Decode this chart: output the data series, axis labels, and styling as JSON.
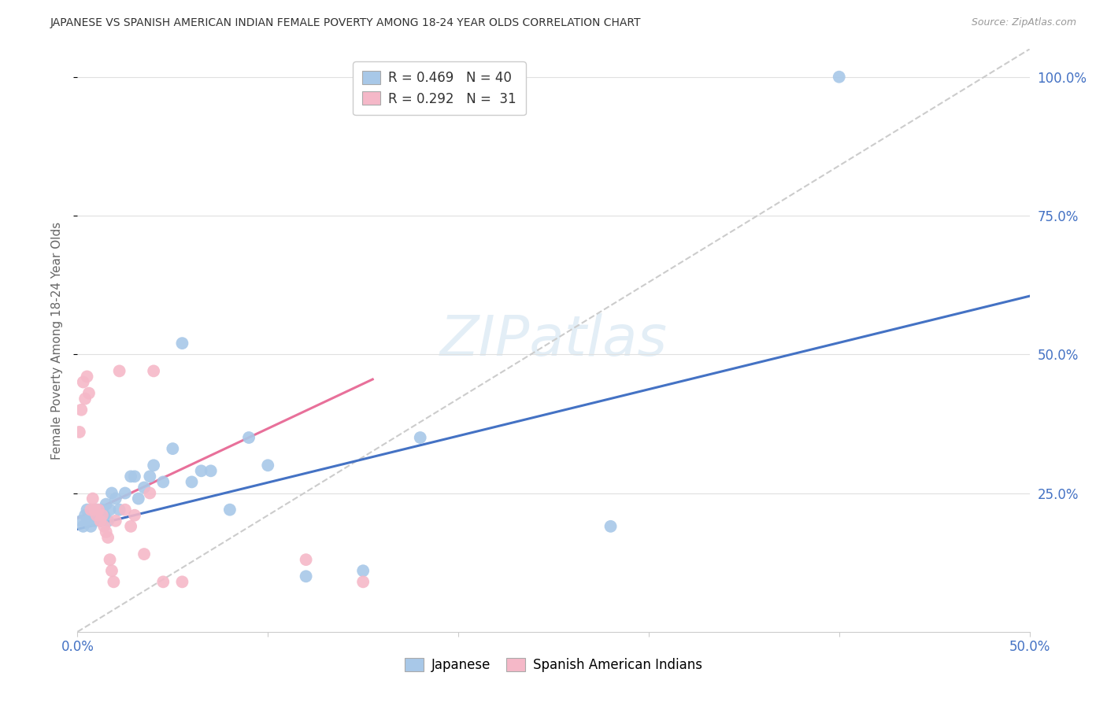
{
  "title": "JAPANESE VS SPANISH AMERICAN INDIAN FEMALE POVERTY AMONG 18-24 YEAR OLDS CORRELATION CHART",
  "source": "Source: ZipAtlas.com",
  "ylabel": "Female Poverty Among 18-24 Year Olds",
  "xlim": [
    0.0,
    0.5
  ],
  "ylim": [
    0.0,
    1.05
  ],
  "xticks": [
    0.0,
    0.1,
    0.2,
    0.3,
    0.4,
    0.5
  ],
  "xtick_labels": [
    "0.0%",
    "",
    "",
    "",
    "",
    "50.0%"
  ],
  "yticks": [
    0.25,
    0.5,
    0.75,
    1.0
  ],
  "ytick_labels": [
    "25.0%",
    "50.0%",
    "75.0%",
    "100.0%"
  ],
  "japanese_R": 0.469,
  "japanese_N": 40,
  "spanish_R": 0.292,
  "spanish_N": 31,
  "japanese_color": "#a8c8e8",
  "spanish_color": "#f5b8c8",
  "japanese_line_color": "#4472c4",
  "spanish_line_color": "#e8709a",
  "diagonal_color": "#cccccc",
  "background_color": "#ffffff",
  "grid_color": "#e0e0e0",
  "japanese_x": [
    0.002,
    0.003,
    0.004,
    0.005,
    0.006,
    0.007,
    0.008,
    0.009,
    0.01,
    0.011,
    0.012,
    0.013,
    0.014,
    0.015,
    0.016,
    0.017,
    0.018,
    0.02,
    0.022,
    0.025,
    0.028,
    0.03,
    0.032,
    0.035,
    0.038,
    0.04,
    0.045,
    0.05,
    0.055,
    0.06,
    0.065,
    0.07,
    0.08,
    0.09,
    0.1,
    0.12,
    0.15,
    0.18,
    0.28,
    0.4
  ],
  "japanese_y": [
    0.2,
    0.19,
    0.21,
    0.22,
    0.2,
    0.19,
    0.21,
    0.2,
    0.22,
    0.21,
    0.2,
    0.22,
    0.21,
    0.23,
    0.2,
    0.22,
    0.25,
    0.24,
    0.22,
    0.25,
    0.28,
    0.28,
    0.24,
    0.26,
    0.28,
    0.3,
    0.27,
    0.33,
    0.52,
    0.27,
    0.29,
    0.29,
    0.22,
    0.35,
    0.3,
    0.1,
    0.11,
    0.35,
    0.19,
    1.0
  ],
  "spanish_x": [
    0.001,
    0.002,
    0.003,
    0.004,
    0.005,
    0.006,
    0.007,
    0.008,
    0.009,
    0.01,
    0.011,
    0.012,
    0.013,
    0.014,
    0.015,
    0.016,
    0.017,
    0.018,
    0.019,
    0.02,
    0.022,
    0.025,
    0.028,
    0.03,
    0.035,
    0.038,
    0.04,
    0.045,
    0.055,
    0.12,
    0.15
  ],
  "spanish_y": [
    0.36,
    0.4,
    0.45,
    0.42,
    0.46,
    0.43,
    0.22,
    0.24,
    0.22,
    0.21,
    0.22,
    0.2,
    0.21,
    0.19,
    0.18,
    0.17,
    0.13,
    0.11,
    0.09,
    0.2,
    0.47,
    0.22,
    0.19,
    0.21,
    0.14,
    0.25,
    0.47,
    0.09,
    0.09,
    0.13,
    0.09
  ],
  "jap_line_x0": 0.0,
  "jap_line_x1": 0.5,
  "jap_line_y0": 0.185,
  "jap_line_y1": 0.605,
  "sp_line_x0": 0.0,
  "sp_line_x1": 0.155,
  "sp_line_y0": 0.205,
  "sp_line_y1": 0.455
}
